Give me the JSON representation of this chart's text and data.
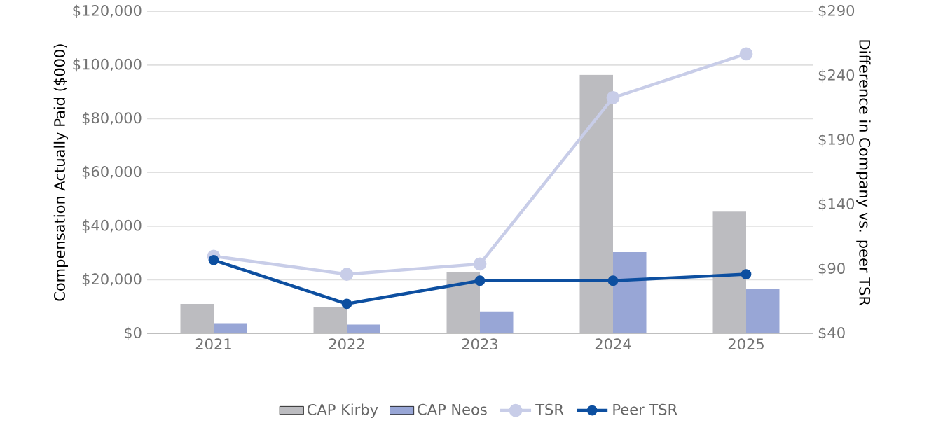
{
  "chart_data": {
    "type": "bar",
    "ylabel": "Compensation Actually Paid ($000)",
    "y2label": "Difference in Company vs. peer TSR",
    "categories": [
      "2021",
      "2022",
      "2023",
      "2024",
      "2025"
    ],
    "series": [
      {
        "name": "CAP Kirby",
        "color": "#bcbcc0",
        "values": [
          11000,
          9900,
          22800,
          96400,
          45400
        ]
      },
      {
        "name": "CAP Neos",
        "color": "#98a6d6",
        "values": [
          3800,
          3300,
          8200,
          30300,
          16700
        ]
      },
      {
        "name": "TSR",
        "type": "line",
        "axis": "y2",
        "color": "#c8cde8",
        "values": [
          100,
          86,
          94,
          223,
          257
        ]
      },
      {
        "name": "Peer TSR",
        "type": "line",
        "axis": "y2",
        "color": "#0d4fa0",
        "values": [
          97,
          63,
          81,
          81,
          86
        ]
      }
    ],
    "ylim": [
      0,
      120000
    ],
    "yticks": [
      {
        "value": 0,
        "label": "$0"
      },
      {
        "value": 20000,
        "label": "$20,000"
      },
      {
        "value": 40000,
        "label": "$40,000"
      },
      {
        "value": 60000,
        "label": "$60,000"
      },
      {
        "value": 80000,
        "label": "$80,000"
      },
      {
        "value": 100000,
        "label": "$100,000"
      },
      {
        "value": 120000,
        "label": "$120,000"
      }
    ],
    "y2lim": [
      40,
      290
    ],
    "y2ticks": [
      {
        "value": 40,
        "label": "$40"
      },
      {
        "value": 90,
        "label": "$90"
      },
      {
        "value": 140,
        "label": "$140"
      },
      {
        "value": 190,
        "label": "$190"
      },
      {
        "value": 240,
        "label": "$240"
      },
      {
        "value": 290,
        "label": "$290"
      }
    ],
    "grid": "y",
    "legend": "bottom",
    "marker": "circle",
    "line_style": "solid"
  }
}
